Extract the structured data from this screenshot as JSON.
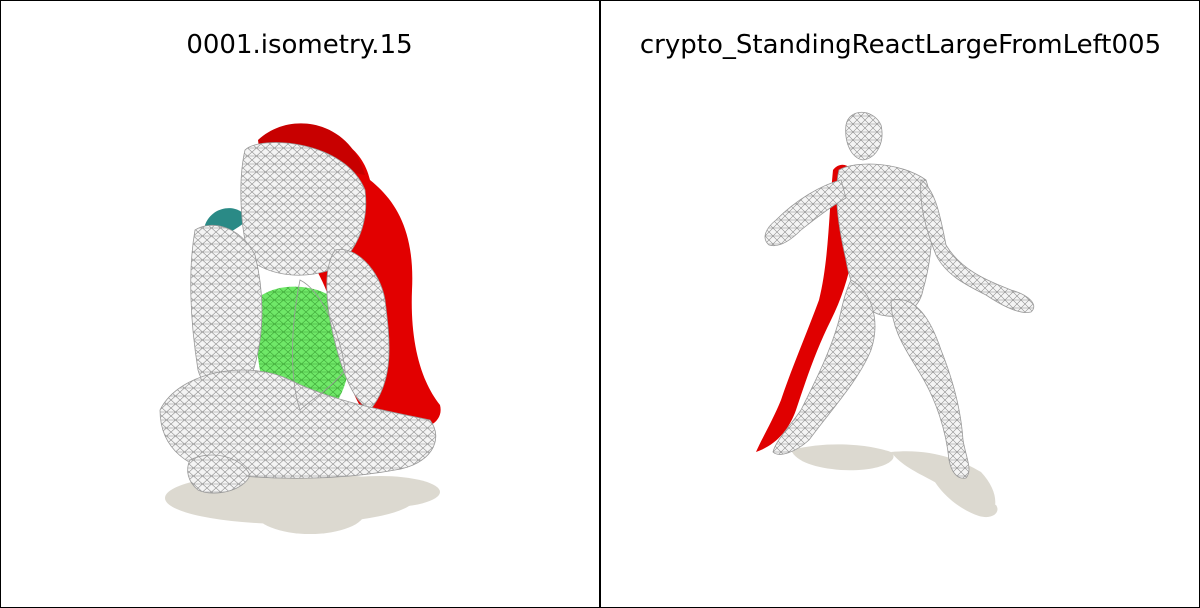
{
  "panels": [
    {
      "title": "0001.isometry.15"
    },
    {
      "title": "crypto_StandingReactLargeFromLeft005"
    }
  ],
  "colors": {
    "background": "#ffffff",
    "border": "#000000",
    "shadow": "#dcd9d0",
    "mesh_fill": "#f2f2f2",
    "mesh_lines": "#9a9a9a",
    "red_surface": "#e00000",
    "green_region": "#66e060",
    "teal_region": "#2a8a86"
  }
}
